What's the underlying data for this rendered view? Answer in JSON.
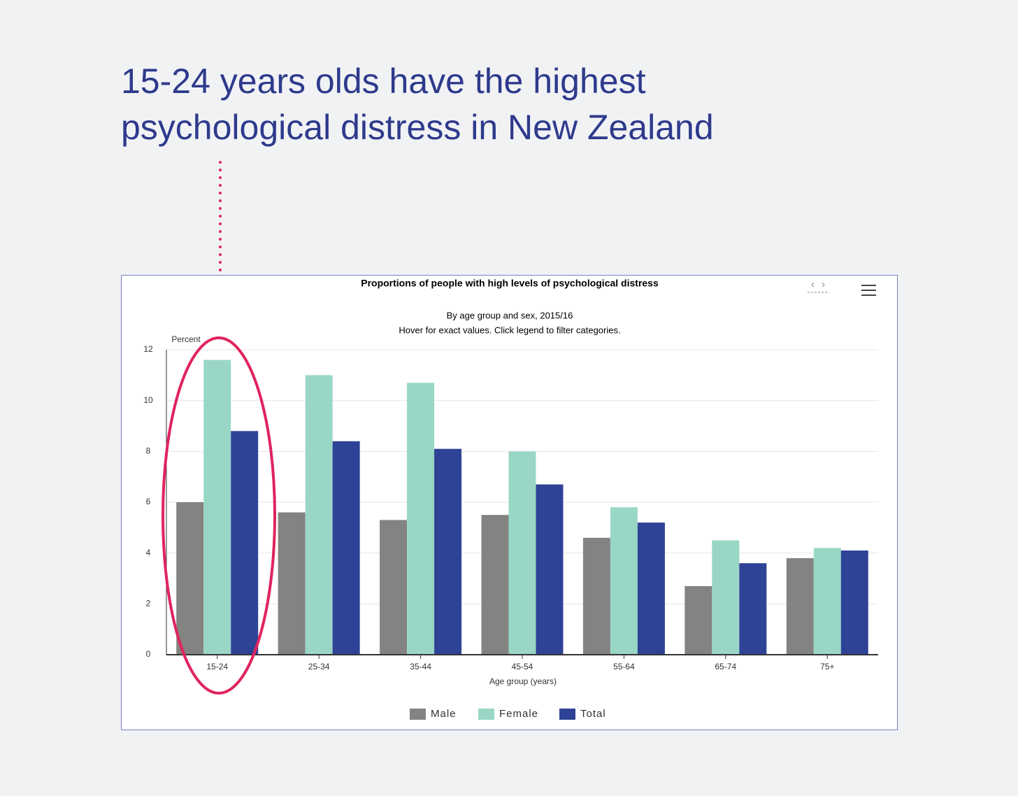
{
  "headline": [
    "15-24 years olds have the highest",
    "psychological distress in New Zealand"
  ],
  "chart_data": {
    "type": "bar",
    "title": "Proportions of people with high levels of psychological distress",
    "subtitle": [
      "By age group and sex, 2015/16",
      "Hover for exact values. Click legend to filter categories."
    ],
    "y_label": "Percent",
    "x_label": "Age group (years)",
    "categories": [
      "15-24",
      "25-34",
      "35-44",
      "45-54",
      "55-64",
      "65-74",
      "75+"
    ],
    "series": [
      {
        "name": "Male",
        "color": "#838381",
        "values": [
          6.0,
          5.6,
          5.3,
          5.5,
          4.6,
          2.7,
          3.8
        ]
      },
      {
        "name": "Female",
        "color": "#9ad6c5",
        "values": [
          11.6,
          11.0,
          10.7,
          8.0,
          5.8,
          4.5,
          4.2
        ]
      },
      {
        "name": "Total",
        "color": "#2e4396",
        "values": [
          8.8,
          8.4,
          8.1,
          6.7,
          5.2,
          3.6,
          4.1
        ]
      }
    ],
    "ylim": [
      0,
      12
    ],
    "yticks": [
      0,
      2,
      4,
      6,
      8,
      10,
      12
    ],
    "grid": true,
    "legend": "bottom"
  }
}
